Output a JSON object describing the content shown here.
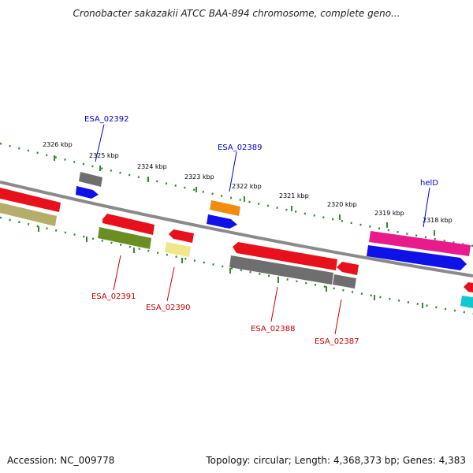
{
  "title": "Cronobacter sakazakii ATCC BAA-894 chromosome, complete geno...",
  "accession": "Accession: NC_009778",
  "summary": "Topology: circular; Length: 4,368,373 bp; Genes: 4,383",
  "scale_labels": [
    "2326 kbp",
    "2325 kbp",
    "2324 kbp",
    "2323 kbp",
    "2322 kbp",
    "2321 kbp",
    "2320 kbp",
    "2319 kbp",
    "2318 kbp"
  ],
  "gene_labels": {
    "ESA_02392": "ESA_02392",
    "ESA_02389": "ESA_02389",
    "helD": "helD",
    "ESA_02391": "ESA_02391",
    "ESA_02390": "ESA_02390",
    "ESA_02388": "ESA_02388",
    "ESA_02387": "ESA_02387"
  },
  "colors": {
    "forward_label": "#0000cc",
    "reverse_label": "#cc0000",
    "backbone": "#8a8a8a",
    "ruler": "#2e8b2e"
  }
}
